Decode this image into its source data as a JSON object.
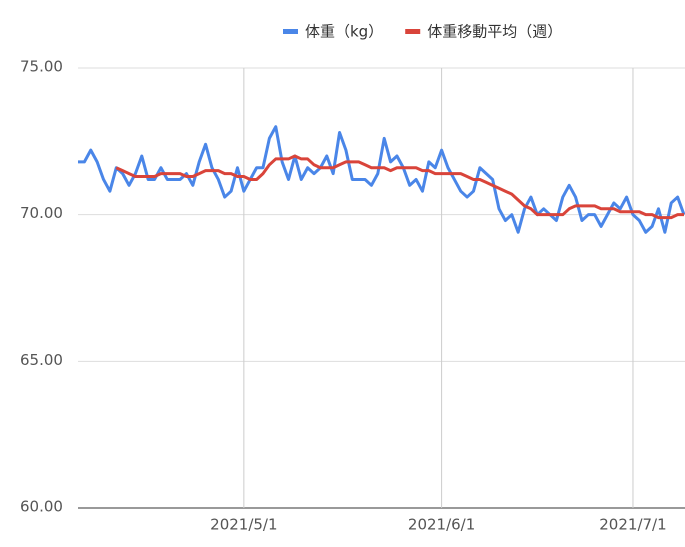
{
  "chart_data": {
    "type": "line",
    "x": [
      "2021/4/5",
      "2021/4/6",
      "2021/4/7",
      "2021/4/8",
      "2021/4/9",
      "2021/4/10",
      "2021/4/11",
      "2021/4/12",
      "2021/4/13",
      "2021/4/14",
      "2021/4/15",
      "2021/4/16",
      "2021/4/17",
      "2021/4/18",
      "2021/4/19",
      "2021/4/20",
      "2021/4/21",
      "2021/4/22",
      "2021/4/23",
      "2021/4/24",
      "2021/4/25",
      "2021/4/26",
      "2021/4/27",
      "2021/4/28",
      "2021/4/29",
      "2021/4/30",
      "2021/5/1",
      "2021/5/2",
      "2021/5/3",
      "2021/5/4",
      "2021/5/5",
      "2021/5/6",
      "2021/5/7",
      "2021/5/8",
      "2021/5/9",
      "2021/5/10",
      "2021/5/11",
      "2021/5/12",
      "2021/5/13",
      "2021/5/14",
      "2021/5/15",
      "2021/5/16",
      "2021/5/17",
      "2021/5/18",
      "2021/5/19",
      "2021/5/20",
      "2021/5/21",
      "2021/5/22",
      "2021/5/23",
      "2021/5/24",
      "2021/5/25",
      "2021/5/26",
      "2021/5/27",
      "2021/5/28",
      "2021/5/29",
      "2021/5/30",
      "2021/5/31",
      "2021/6/1",
      "2021/6/2",
      "2021/6/3",
      "2021/6/4",
      "2021/6/5",
      "2021/6/6",
      "2021/6/7",
      "2021/6/8",
      "2021/6/9",
      "2021/6/10",
      "2021/6/11",
      "2021/6/12",
      "2021/6/13",
      "2021/6/14",
      "2021/6/15",
      "2021/6/16",
      "2021/6/17",
      "2021/6/18",
      "2021/6/19",
      "2021/6/20",
      "2021/6/21",
      "2021/6/22",
      "2021/6/23",
      "2021/6/24",
      "2021/6/25",
      "2021/6/26",
      "2021/6/27",
      "2021/6/28",
      "2021/6/29",
      "2021/6/30",
      "2021/7/1",
      "2021/7/2",
      "2021/7/3",
      "2021/7/4",
      "2021/7/5",
      "2021/7/6",
      "2021/7/7",
      "2021/7/8",
      "2021/7/9"
    ],
    "series": [
      {
        "name": "体重（kg）",
        "color": "#4a86e8",
        "values": [
          71.8,
          71.8,
          72.2,
          71.8,
          71.2,
          70.8,
          71.6,
          71.4,
          71.0,
          71.4,
          72.0,
          71.2,
          71.2,
          71.6,
          71.2,
          71.2,
          71.2,
          71.4,
          71.0,
          71.8,
          72.4,
          71.6,
          71.2,
          70.6,
          70.8,
          71.6,
          70.8,
          71.2,
          71.6,
          71.6,
          72.6,
          73.0,
          71.8,
          71.2,
          72.0,
          71.2,
          71.6,
          71.4,
          71.6,
          72.0,
          71.4,
          72.8,
          72.2,
          71.2,
          71.2,
          71.2,
          71.0,
          71.4,
          72.6,
          71.8,
          72.0,
          71.6,
          71.0,
          71.2,
          70.8,
          71.8,
          71.6,
          72.2,
          71.6,
          71.2,
          70.8,
          70.6,
          70.8,
          71.6,
          71.4,
          71.2,
          70.2,
          69.8,
          70.0,
          69.4,
          70.2,
          70.6,
          70.0,
          70.2,
          70.0,
          69.8,
          70.6,
          71.0,
          70.6,
          69.8,
          70.0,
          70.0,
          69.6,
          70.0,
          70.4,
          70.2,
          70.6,
          70.0,
          69.8,
          69.4,
          69.6,
          70.2,
          69.4,
          70.4,
          70.6,
          70.0
        ]
      },
      {
        "name": "体重移動平均（週）",
        "color": "#d9443a",
        "values": [
          null,
          null,
          null,
          null,
          null,
          null,
          71.6,
          71.5,
          71.4,
          71.3,
          71.3,
          71.3,
          71.3,
          71.4,
          71.4,
          71.4,
          71.4,
          71.3,
          71.3,
          71.4,
          71.5,
          71.5,
          71.5,
          71.4,
          71.4,
          71.3,
          71.3,
          71.2,
          71.2,
          71.4,
          71.7,
          71.9,
          71.9,
          71.9,
          72.0,
          71.9,
          71.9,
          71.7,
          71.6,
          71.6,
          71.6,
          71.7,
          71.8,
          71.8,
          71.8,
          71.7,
          71.6,
          71.6,
          71.6,
          71.5,
          71.6,
          71.6,
          71.6,
          71.6,
          71.5,
          71.5,
          71.4,
          71.4,
          71.4,
          71.4,
          71.4,
          71.3,
          71.2,
          71.2,
          71.1,
          71.0,
          70.9,
          70.8,
          70.7,
          70.5,
          70.3,
          70.2,
          70.0,
          70.0,
          70.0,
          70.0,
          70.0,
          70.2,
          70.3,
          70.3,
          70.3,
          70.3,
          70.2,
          70.2,
          70.2,
          70.1,
          70.1,
          70.1,
          70.1,
          70.0,
          70.0,
          69.9,
          69.9,
          69.9,
          70.0,
          70.0
        ]
      }
    ],
    "xlim": [
      "2021/4/5",
      "2021/7/9"
    ],
    "xticks": [
      "2021/5/1",
      "2021/6/1",
      "2021/7/1"
    ],
    "ylim": [
      60,
      75
    ],
    "yticks": [
      {
        "value": 60,
        "label": "60.00"
      },
      {
        "value": 65,
        "label": "65.00"
      },
      {
        "value": 70,
        "label": "70.00"
      },
      {
        "value": 75,
        "label": "75.00"
      }
    ],
    "grid": true,
    "legend": "top"
  }
}
